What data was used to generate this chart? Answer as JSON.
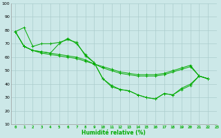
{
  "title": "",
  "xlabel": "Humidité relative (%)",
  "ylabel": "",
  "background_color": "#cce8e8",
  "grid_color": "#aacccc",
  "line_color": "#00aa00",
  "xlim": [
    -0.5,
    23
  ],
  "ylim": [
    10,
    100
  ],
  "yticks": [
    10,
    20,
    30,
    40,
    50,
    60,
    70,
    80,
    90,
    100
  ],
  "xticks": [
    0,
    1,
    2,
    3,
    4,
    5,
    6,
    7,
    8,
    9,
    10,
    11,
    12,
    13,
    14,
    15,
    16,
    17,
    18,
    19,
    20,
    21,
    22,
    23
  ],
  "series": [
    [
      79,
      82,
      68,
      70,
      70,
      71,
      73,
      71,
      61,
      56,
      44,
      38,
      36,
      35,
      32,
      30,
      29,
      33,
      32,
      36,
      39,
      46,
      44
    ],
    [
      79,
      68,
      65,
      64,
      63,
      62,
      61,
      60,
      58,
      55,
      53,
      51,
      49,
      48,
      47,
      47,
      47,
      48,
      50,
      52,
      54,
      46,
      44
    ],
    [
      79,
      68,
      65,
      64,
      63,
      70,
      74,
      70,
      62,
      56,
      44,
      39,
      36,
      35,
      32,
      30,
      29,
      33,
      32,
      37,
      40,
      46,
      44
    ],
    [
      79,
      68,
      65,
      63,
      62,
      61,
      60,
      59,
      57,
      55,
      52,
      50,
      48,
      47,
      46,
      46,
      46,
      47,
      49,
      51,
      53,
      46,
      44
    ]
  ]
}
